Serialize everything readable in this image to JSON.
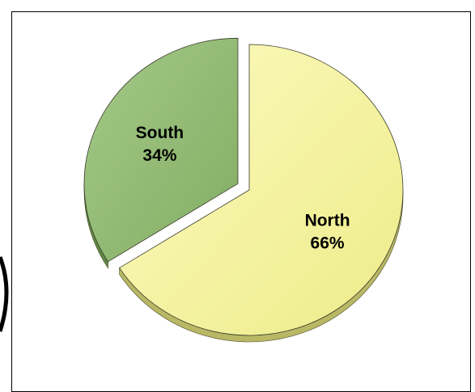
{
  "chart_data": {
    "type": "pie",
    "title": "",
    "slices": [
      {
        "label": "North",
        "percent_label": "66%",
        "value": 66,
        "color": "#f4f29a",
        "side_color": "#b8b865",
        "exploded": false
      },
      {
        "label": "South",
        "percent_label": "34%",
        "value": 34,
        "color": "#8fb870",
        "side_color": "#5f8a45",
        "exploded": true
      }
    ],
    "legend": false,
    "style": "3d-pie"
  }
}
